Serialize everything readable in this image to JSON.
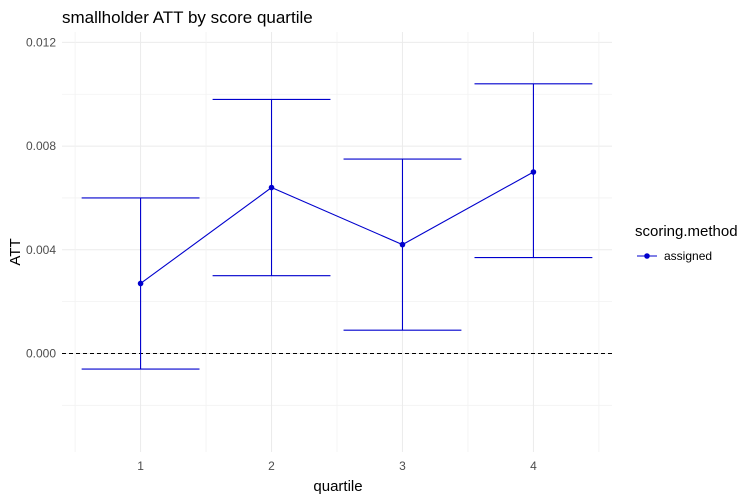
{
  "chart_data": {
    "type": "line",
    "title": "smallholder ATT by score quartile",
    "xlabel": "quartile",
    "ylabel": "ATT",
    "categories": [
      "1",
      "2",
      "3",
      "4"
    ],
    "ylim": [
      -0.0038,
      0.0124
    ],
    "y_ticks": [
      0.0,
      0.004,
      0.008,
      0.012
    ],
    "y_tick_labels": [
      "0.000",
      "0.004",
      "0.008",
      "0.012"
    ],
    "reference_line": {
      "y": 0,
      "style": "dashed"
    },
    "grid": true,
    "legend": {
      "title": "scoring.method",
      "position": "right"
    },
    "series": [
      {
        "name": "assigned",
        "color": "#0000CD",
        "values": [
          0.0027,
          0.0064,
          0.0042,
          0.007
        ],
        "lower": [
          -0.0006,
          0.003,
          0.0009,
          0.0037
        ],
        "upper": [
          0.006,
          0.0098,
          0.0075,
          0.0104
        ]
      }
    ]
  }
}
